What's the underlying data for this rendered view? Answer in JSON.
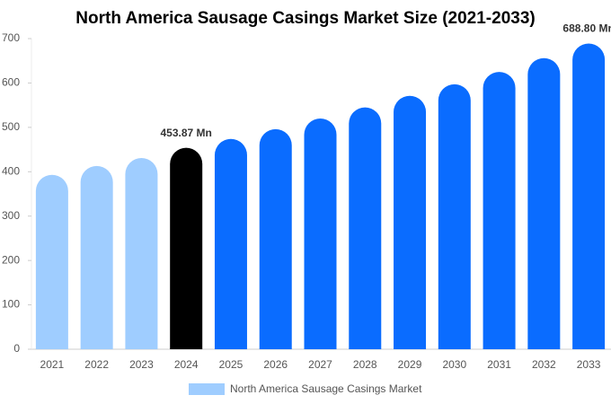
{
  "chart_data": {
    "type": "bar",
    "title": "North America Sausage Casings Market Size (2021-2033)",
    "categories": [
      "2021",
      "2022",
      "2023",
      "2024",
      "2025",
      "2026",
      "2027",
      "2028",
      "2029",
      "2030",
      "2031",
      "2032",
      "2033"
    ],
    "series": [
      {
        "name": "North America Sausage Casings Market",
        "color": "#9fcdff",
        "values": [
          393,
          413,
          431,
          453.87,
          474,
          496,
          520,
          545,
          571,
          597,
          625,
          656,
          688.8
        ],
        "value_labels": [
          null,
          null,
          null,
          "453.87 Mn",
          null,
          null,
          null,
          null,
          null,
          null,
          null,
          null,
          "688.80 Mn"
        ],
        "bar_colors": [
          "#9fcdff",
          "#9fcdff",
          "#9fcdff",
          "#000000",
          "#0a6cff",
          "#0a6cff",
          "#0a6cff",
          "#0a6cff",
          "#0a6cff",
          "#0a6cff",
          "#0a6cff",
          "#0a6cff",
          "#0a6cff"
        ]
      }
    ],
    "ylim": [
      0,
      700
    ],
    "yticks": [
      0,
      100,
      200,
      300,
      400,
      500,
      600,
      700
    ],
    "grid": false
  }
}
